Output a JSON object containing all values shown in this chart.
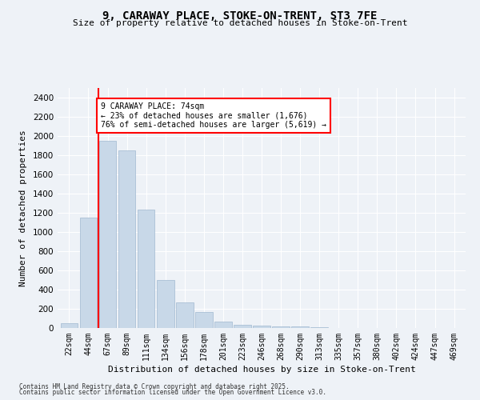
{
  "title1": "9, CARAWAY PLACE, STOKE-ON-TRENT, ST3 7FE",
  "title2": "Size of property relative to detached houses in Stoke-on-Trent",
  "xlabel": "Distribution of detached houses by size in Stoke-on-Trent",
  "ylabel": "Number of detached properties",
  "bar_color": "#c8d8e8",
  "bar_edge_color": "#a0b8d0",
  "bins": [
    "22sqm",
    "44sqm",
    "67sqm",
    "89sqm",
    "111sqm",
    "134sqm",
    "156sqm",
    "178sqm",
    "201sqm",
    "223sqm",
    "246sqm",
    "268sqm",
    "290sqm",
    "313sqm",
    "335sqm",
    "357sqm",
    "380sqm",
    "402sqm",
    "424sqm",
    "447sqm",
    "469sqm"
  ],
  "values": [
    50,
    1150,
    1950,
    1850,
    1230,
    500,
    270,
    170,
    65,
    30,
    25,
    20,
    20,
    5,
    2,
    2,
    2,
    1,
    1,
    1,
    1
  ],
  "annotation_text": "9 CARAWAY PLACE: 74sqm\n← 23% of detached houses are smaller (1,676)\n76% of semi-detached houses are larger (5,619) →",
  "annotation_box_color": "white",
  "annotation_box_edge_color": "red",
  "vline_color": "red",
  "vline_x": 1.5,
  "ylim": [
    0,
    2500
  ],
  "yticks": [
    0,
    200,
    400,
    600,
    800,
    1000,
    1200,
    1400,
    1600,
    1800,
    2000,
    2200,
    2400
  ],
  "bg_color": "#eef2f7",
  "grid_color": "white",
  "footer1": "Contains HM Land Registry data © Crown copyright and database right 2025.",
  "footer2": "Contains public sector information licensed under the Open Government Licence v3.0."
}
